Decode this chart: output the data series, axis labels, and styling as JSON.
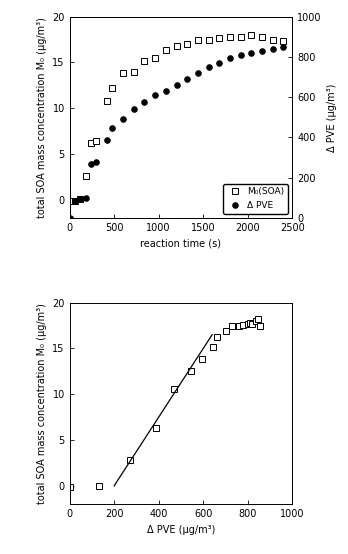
{
  "top": {
    "time": [
      0,
      60,
      120,
      180,
      240,
      300,
      420,
      480,
      600,
      720,
      840,
      960,
      1080,
      1200,
      1320,
      1440,
      1560,
      1680,
      1800,
      1920,
      2040,
      2160,
      2280,
      2400
    ],
    "M0": [
      -0.1,
      -0.1,
      0.1,
      2.6,
      6.2,
      6.4,
      10.8,
      12.2,
      13.8,
      14.0,
      15.1,
      15.5,
      16.4,
      16.8,
      17.0,
      17.5,
      17.5,
      17.7,
      17.8,
      17.8,
      18.0,
      17.8,
      17.5,
      17.3
    ],
    "pve_time": [
      0,
      60,
      120,
      180,
      240,
      300,
      420,
      480,
      600,
      720,
      840,
      960,
      1080,
      1200,
      1320,
      1440,
      1560,
      1680,
      1800,
      1920,
      2040,
      2160,
      2280,
      2400
    ],
    "delta_pve": [
      0,
      85,
      95,
      100,
      270,
      280,
      390,
      445,
      490,
      540,
      575,
      610,
      630,
      660,
      690,
      720,
      750,
      770,
      795,
      810,
      820,
      830,
      840,
      850
    ],
    "ylabel_left": "total SOA mass concentration M₀ (μg/m³)",
    "ylabel_right": "Δ PVE (μg/m³)",
    "xlabel": "reaction time (s)",
    "xlim": [
      0,
      2500
    ],
    "ylim_left": [
      -2,
      20
    ],
    "ylim_right": [
      0,
      1000
    ],
    "yticks_left": [
      0,
      5,
      10,
      15,
      20
    ],
    "yticks_right": [
      0,
      200,
      400,
      600,
      800,
      1000
    ],
    "legend_M0": "M₀(SOA)",
    "legend_pve": "Δ PVE"
  },
  "bottom": {
    "delta_pve": [
      0,
      130,
      270,
      390,
      470,
      545,
      595,
      645,
      660,
      700,
      730,
      760,
      780,
      800,
      810,
      820,
      835,
      845,
      855
    ],
    "M0": [
      -0.1,
      0.0,
      2.8,
      6.3,
      10.6,
      12.5,
      13.9,
      15.2,
      16.3,
      16.9,
      17.5,
      17.5,
      17.6,
      17.7,
      17.8,
      17.7,
      18.0,
      18.2,
      17.4
    ],
    "fit_x": [
      200,
      640
    ],
    "fit_y": [
      0.0,
      16.5
    ],
    "ylabel": "total SOA mass concentration M₀ (μg/m³)",
    "xlabel": "Δ PVE (μg/m³)",
    "xlim": [
      0,
      1000
    ],
    "ylim": [
      -2,
      20
    ],
    "yticks": [
      0,
      5,
      10,
      15,
      20
    ],
    "xticks": [
      0,
      200,
      400,
      600,
      800,
      1000
    ]
  },
  "marker_size": 4,
  "figure_bg": "#ffffff",
  "axes_color": "#000000"
}
